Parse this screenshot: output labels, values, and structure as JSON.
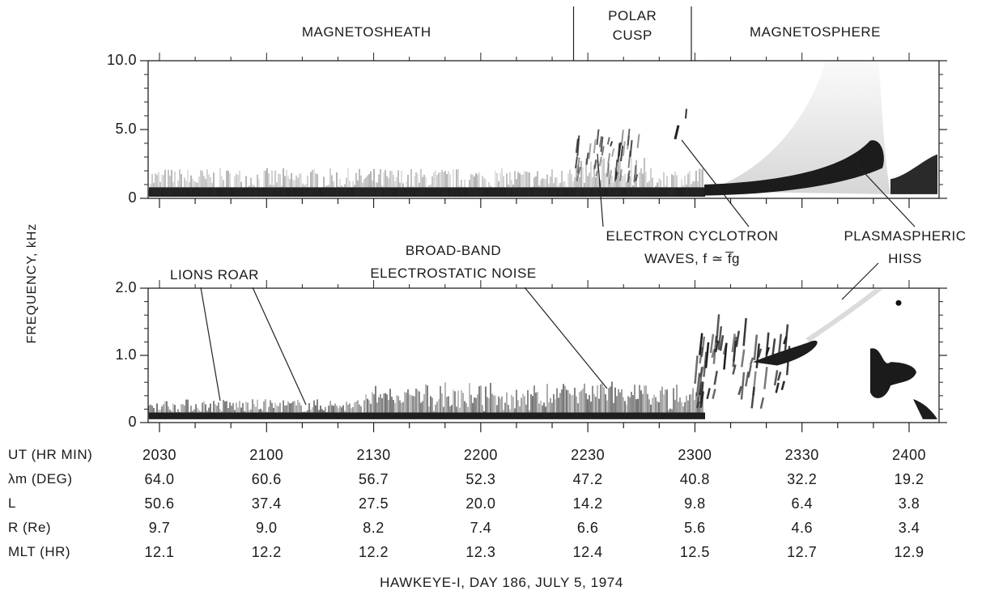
{
  "chart_data": [
    {
      "type": "heatmap",
      "panel": "upper",
      "ylabel": "FREQUENCY, kHz",
      "ylim": [
        0,
        10.0
      ],
      "y_ticks": [
        "10.0",
        "5.0",
        "0"
      ],
      "regions": [
        {
          "label_lines": [
            "MAGNETOSHEATH"
          ],
          "ut_start": "2030",
          "ut_end": "2226"
        },
        {
          "label_lines": [
            "POLAR",
            "CUSP"
          ],
          "ut_start": "2226",
          "ut_end": "2259"
        },
        {
          "label_lines": [
            "MAGNETOSPHERE"
          ],
          "ut_start": "2259",
          "ut_end": "2410"
        }
      ],
      "annotations": [
        {
          "lines": [
            "ELECTRON  CYCLOTRON",
            "WAVES,  f ≃ f̅g"
          ]
        },
        {
          "lines": [
            "PLASMASPHERIC",
            "HISS"
          ]
        }
      ]
    },
    {
      "type": "heatmap",
      "panel": "lower",
      "ylabel": "FREQUENCY, kHz",
      "ylim": [
        0,
        2.0
      ],
      "y_ticks": [
        "2.0",
        "1.0",
        "0"
      ],
      "annotations": [
        {
          "lines": [
            "LIONS ROAR"
          ]
        },
        {
          "lines": [
            "BROAD-BAND",
            "ELECTROSTATIC  NOISE"
          ]
        }
      ]
    }
  ],
  "x_axis": {
    "rows": [
      {
        "label": "UT (HR MIN)",
        "values": [
          "2030",
          "2100",
          "2130",
          "2200",
          "2230",
          "2300",
          "2330",
          "2400"
        ]
      },
      {
        "label": "λm (DEG)",
        "values": [
          "64.0",
          "60.6",
          "56.7",
          "52.3",
          "47.2",
          "40.8",
          "32.2",
          "19.2"
        ]
      },
      {
        "label": "L",
        "values": [
          "50.6",
          "37.4",
          "27.5",
          "20.0",
          "14.2",
          "9.8",
          "6.4",
          "3.8"
        ]
      },
      {
        "label": "R (Re)",
        "values": [
          "9.7",
          "9.0",
          "8.2",
          "7.4",
          "6.6",
          "5.6",
          "4.6",
          "3.4"
        ]
      },
      {
        "label": "MLT (HR)",
        "values": [
          "12.1",
          "12.2",
          "12.2",
          "12.3",
          "12.4",
          "12.5",
          "12.7",
          "12.9"
        ]
      }
    ]
  },
  "caption": "HAWKEYE-I,  DAY 186,  JULY 5, 1974"
}
